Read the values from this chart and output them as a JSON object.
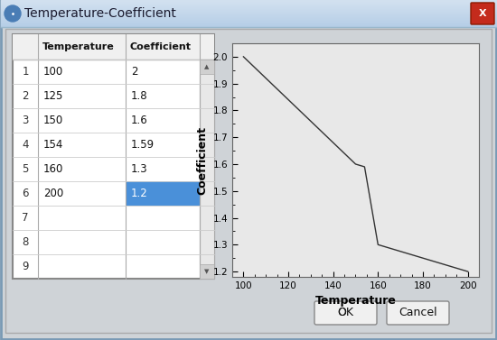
{
  "title": "Temperature-Coefficient",
  "table_headers": [
    "",
    "Temperature",
    "Coefficient"
  ],
  "table_rows": [
    [
      "1",
      "100",
      "2"
    ],
    [
      "2",
      "125",
      "1.8"
    ],
    [
      "3",
      "150",
      "1.6"
    ],
    [
      "4",
      "154",
      "1.59"
    ],
    [
      "5",
      "160",
      "1.3"
    ],
    [
      "6",
      "200",
      "1.2"
    ],
    [
      "7",
      "",
      ""
    ],
    [
      "8",
      "",
      ""
    ],
    [
      "9",
      "",
      ""
    ]
  ],
  "highlighted_row": 5,
  "highlighted_col": 2,
  "highlight_color": "#4a90d9",
  "highlight_text_color": "#ffffff",
  "temperatures": [
    100,
    125,
    150,
    154,
    160,
    200
  ],
  "coefficients": [
    2.0,
    1.8,
    1.6,
    1.59,
    1.3,
    1.2
  ],
  "xlabel": "Temperature",
  "ylabel": "Coefficient",
  "xlim": [
    95,
    205
  ],
  "ylim": [
    1.18,
    2.05
  ],
  "yticks": [
    1.2,
    1.3,
    1.4,
    1.5,
    1.6,
    1.7,
    1.8,
    1.9,
    2.0
  ],
  "xticks": [
    100,
    120,
    140,
    160,
    180,
    200
  ],
  "line_color": "#333333",
  "bg_color": "#cfd3d7",
  "plot_bg": "#e8e8e8",
  "table_bg": "#ffffff",
  "header_bg": "#f0f0f0",
  "ok_label": "OK",
  "cancel_label": "Cancel"
}
